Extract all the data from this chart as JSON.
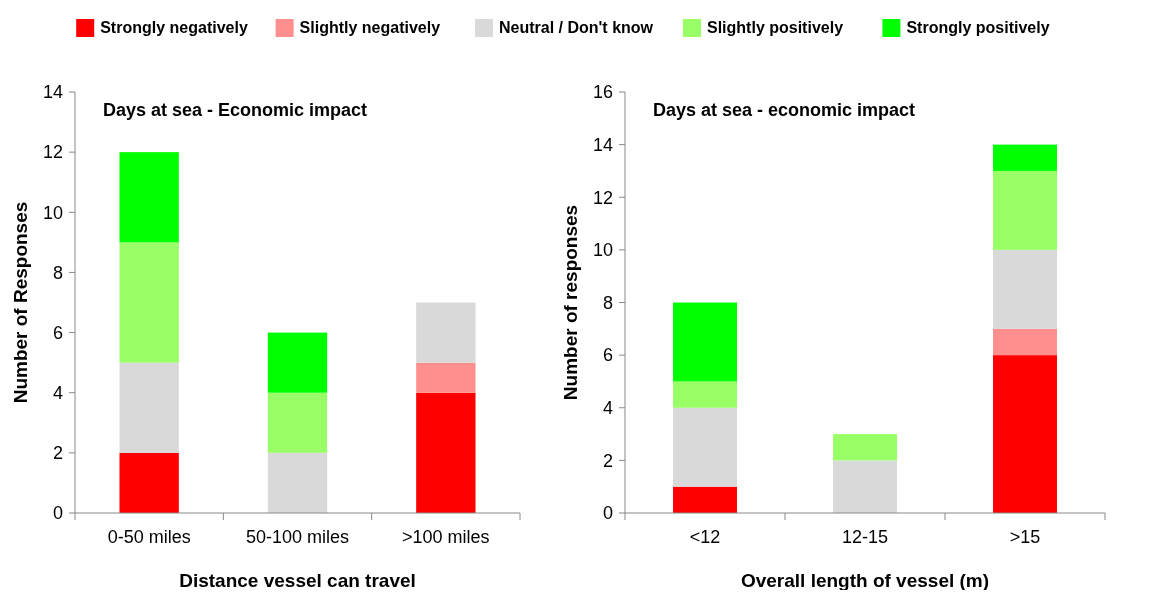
{
  "chart_data": [
    {
      "type": "bar",
      "stacked": true,
      "title": "Days at sea - Economic impact",
      "xlabel": "Distance vessel can travel",
      "ylabel": "Number of Responses",
      "categories": [
        "0-50 miles",
        "50-100 miles",
        ">100 miles"
      ],
      "ylim": [
        0,
        14
      ],
      "yticks": [
        0,
        2,
        4,
        6,
        8,
        10,
        12,
        14
      ],
      "legend": "top",
      "series": [
        {
          "name": "Strongly negatively",
          "color": "#ff0000",
          "values": [
            2,
            0,
            4
          ]
        },
        {
          "name": "Slightly negatively",
          "color": "#ff8f8f",
          "values": [
            0,
            0,
            1
          ]
        },
        {
          "name": "Neutral / Don't know",
          "color": "#d9d9d9",
          "values": [
            3,
            2,
            2
          ]
        },
        {
          "name": "Slightly positively",
          "color": "#99ff66",
          "values": [
            4,
            2,
            0
          ]
        },
        {
          "name": "Strongly positively",
          "color": "#00ff00",
          "values": [
            3,
            2,
            0
          ]
        }
      ]
    },
    {
      "type": "bar",
      "stacked": true,
      "title": "Days at sea - economic impact",
      "xlabel": "Overall length of vessel (m)",
      "ylabel": "Number of responses",
      "categories": [
        "<12",
        "12-15",
        ">15"
      ],
      "ylim": [
        0,
        16
      ],
      "yticks": [
        0,
        2,
        4,
        6,
        8,
        10,
        12,
        14,
        16
      ],
      "series": [
        {
          "color": "#ff0000",
          "values": [
            1,
            0,
            6
          ]
        },
        {
          "color": "#ff8f8f",
          "values": [
            0,
            0,
            1
          ]
        },
        {
          "color": "#d9d9d9",
          "values": [
            3,
            2,
            3
          ]
        },
        {
          "color": "#99ff66",
          "values": [
            1,
            1,
            3
          ]
        },
        {
          "color": "#00ff00",
          "values": [
            3,
            0,
            1
          ]
        }
      ]
    }
  ]
}
